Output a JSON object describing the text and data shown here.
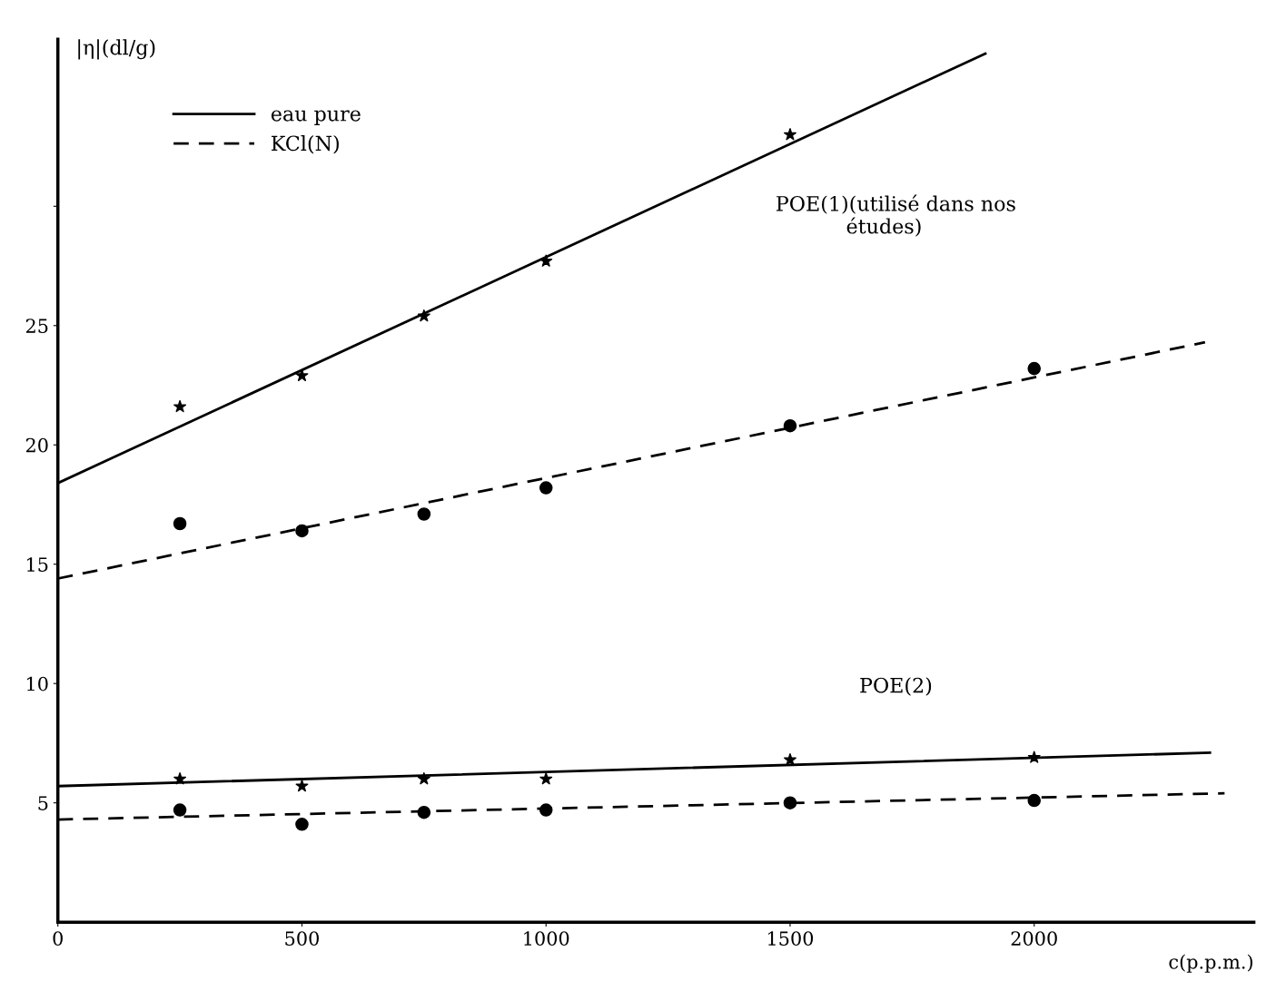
{
  "chart_data": {
    "type": "scatter",
    "xlabel": "c(p.p.m.)",
    "ylabel": "|η|(dl/g)",
    "xlim": [
      0,
      2450
    ],
    "ylim": [
      0,
      37
    ],
    "xticks": [
      0,
      500,
      1000,
      1500,
      2000
    ],
    "yticks": [
      5,
      10,
      15,
      20,
      25,
      {
        "value": 30,
        "label": null
      }
    ],
    "grid": false,
    "legend": "top left",
    "annotations": [
      "POE(1)(utilisé dans nos\n           études)",
      "POE(2)"
    ],
    "series": [
      {
        "marker": "star",
        "color": "#000000",
        "x": [
          250,
          500,
          750,
          1000,
          1500
        ],
        "values": [
          21.6,
          22.9,
          25.4,
          27.7,
          33.0
        ]
      },
      {
        "type": "line",
        "name": "eau pure",
        "line_style": "solid",
        "color": "#000000",
        "x": [
          0,
          1900
        ],
        "values": [
          18.4,
          36.4
        ]
      },
      {
        "marker": "circle",
        "color": "#000000",
        "x": [
          250,
          500,
          750,
          1000,
          1500,
          2000
        ],
        "values": [
          16.7,
          16.4,
          17.1,
          18.2,
          20.8,
          23.2
        ]
      },
      {
        "type": "line",
        "name": "KCl(N)",
        "line_style": "dashed",
        "color": "#000000",
        "x": [
          0,
          2350
        ],
        "values": [
          14.4,
          24.3
        ]
      },
      {
        "marker": "star",
        "color": "#000000",
        "x": [
          250,
          500,
          750,
          1000,
          1500,
          2000
        ],
        "values": [
          6.0,
          5.7,
          6.0,
          6.0,
          6.8,
          6.9
        ]
      },
      {
        "type": "line",
        "line_style": "solid",
        "color": "#000000",
        "x": [
          0,
          2360
        ],
        "values": [
          5.7,
          7.1
        ]
      },
      {
        "marker": "circle",
        "color": "#000000",
        "x": [
          250,
          500,
          750,
          1000,
          1500,
          2000
        ],
        "values": [
          4.7,
          4.1,
          4.6,
          4.7,
          5.0,
          5.1
        ]
      },
      {
        "type": "line",
        "line_style": "dashed",
        "color": "#000000",
        "x": [
          0,
          2390
        ],
        "values": [
          4.3,
          5.4
        ]
      }
    ]
  }
}
